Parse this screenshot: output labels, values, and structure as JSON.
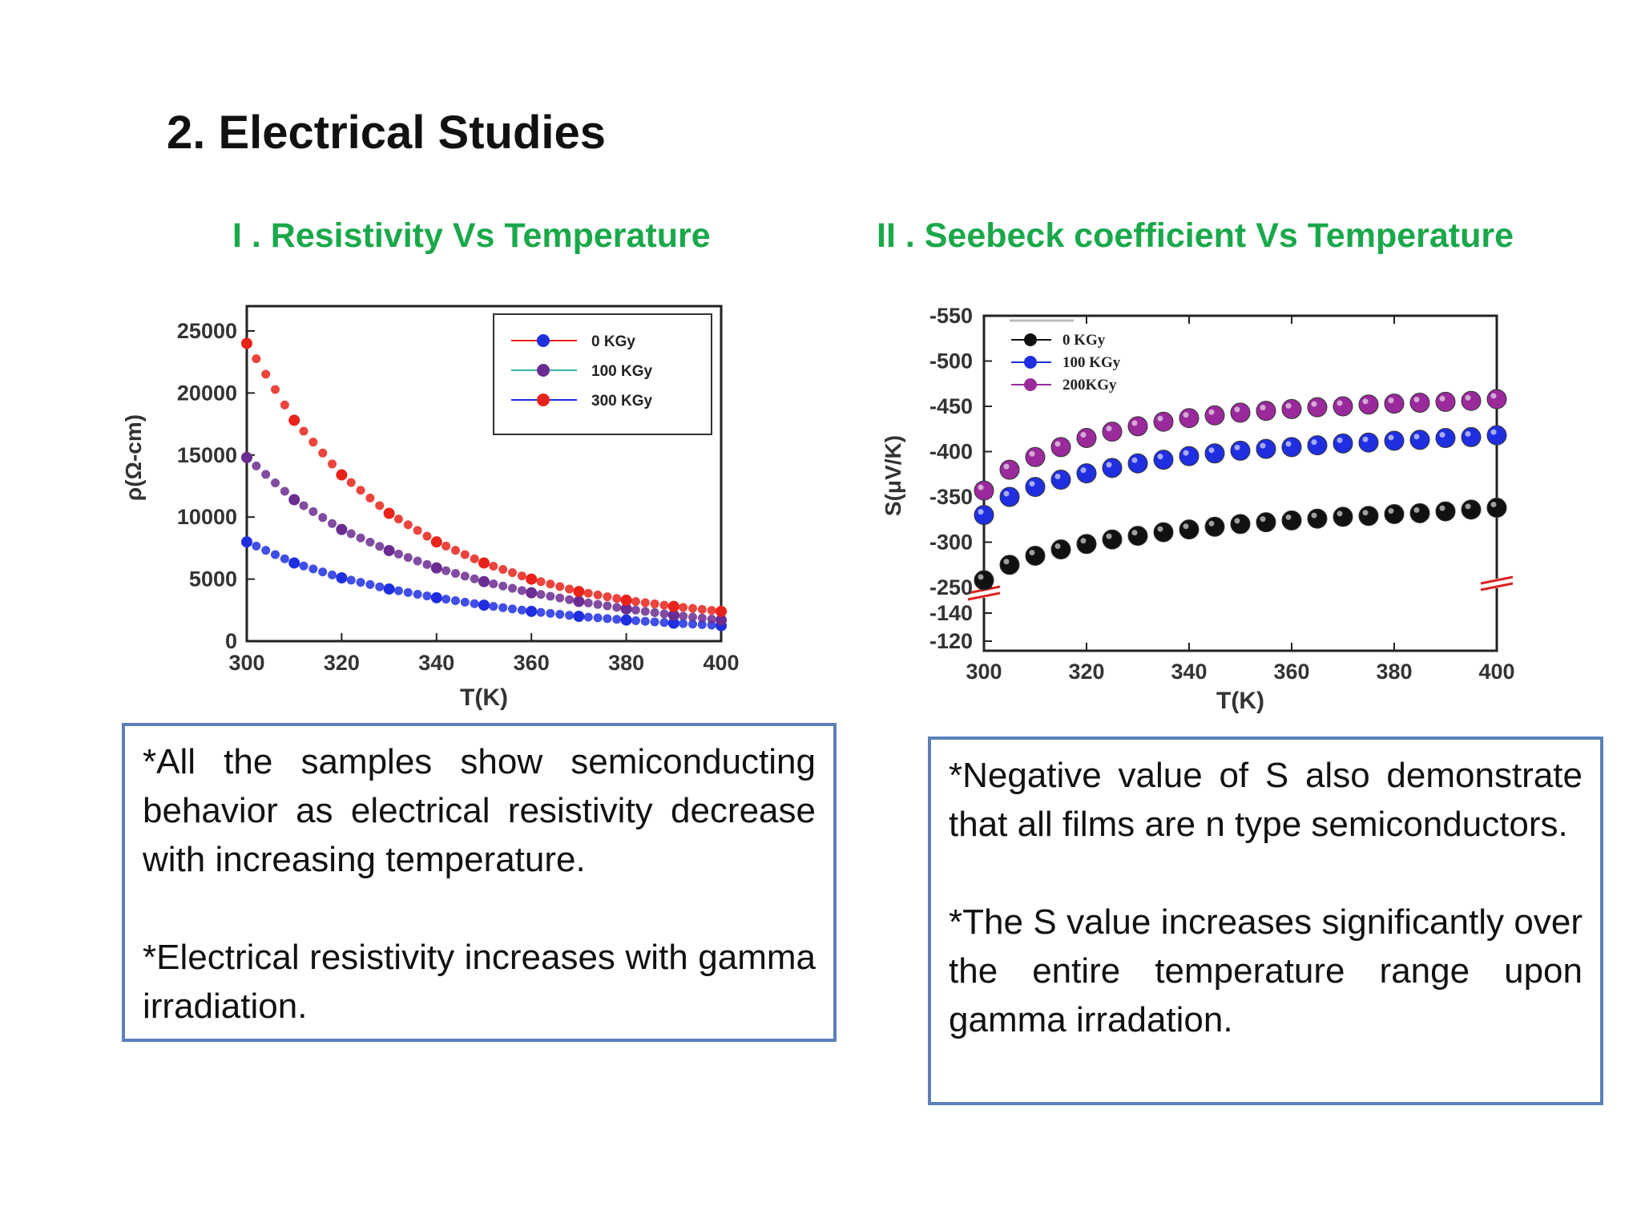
{
  "slide": {
    "title": "2. Electrical Studies",
    "subtitle_left": "I . Resistivity Vs Temperature",
    "subtitle_right": "II . Seebeck coefficient  Vs Temperature"
  },
  "notes": {
    "left": [
      "*All the samples show semiconducting behavior as electrical resistivity decrease with  increasing temperature.",
      "*Electrical resistivity  increases with gamma irradiation."
    ],
    "right": [
      "*Negative value of S also demonstrate that all films are n type semiconductors.",
      "*The S value increases significantly over the entire temperature range upon gamma irradation."
    ]
  },
  "colors": {
    "subtitle": "#1aa84a",
    "note_border": "#5b80b8",
    "red": "#e8231b",
    "blue": "#1f2fe0",
    "purple": "#6b2c91",
    "magenta": "#9a2a9c",
    "black": "#111111"
  },
  "chart_data": [
    {
      "type": "scatter",
      "title": "I . Resistivity Vs Temperature",
      "xlabel": "T(K)",
      "ylabel": "ρ(Ω-cm)",
      "xlim": [
        300,
        400
      ],
      "ylim": [
        0,
        27000
      ],
      "x_ticks": [
        "300",
        "320",
        "340",
        "360",
        "380",
        "400"
      ],
      "y_ticks": [
        "0",
        "5000",
        "10000",
        "15000",
        "20000",
        "25000"
      ],
      "legend_position": "top-right",
      "x": [
        300,
        310,
        320,
        330,
        340,
        350,
        360,
        370,
        380,
        390,
        400
      ],
      "series": [
        {
          "name": "0 KGy",
          "color": "#1f2fe0",
          "values": [
            8000,
            6300,
            5100,
            4200,
            3500,
            2900,
            2400,
            2000,
            1700,
            1450,
            1250
          ]
        },
        {
          "name": "100 KGy",
          "color": "#6b2c91",
          "values": [
            14800,
            11400,
            9000,
            7300,
            5900,
            4800,
            3900,
            3200,
            2600,
            2100,
            1700
          ]
        },
        {
          "name": "300 KGy",
          "color": "#e8231b",
          "values": [
            24000,
            17800,
            13400,
            10300,
            8000,
            6300,
            5000,
            4000,
            3300,
            2800,
            2400
          ]
        }
      ]
    },
    {
      "type": "scatter",
      "title": "II . Seebeck coefficient  Vs Temperature",
      "xlabel": "T(K)",
      "ylabel": "S(μV/K)",
      "xlim": [
        300,
        400
      ],
      "y_ticks_upper": [
        "-250",
        "-300",
        "-350",
        "-400",
        "-450",
        "-500",
        "-550"
      ],
      "y_ticks_lower": [
        "-140",
        "-120"
      ],
      "x_ticks": [
        "300",
        "320",
        "340",
        "360",
        "380",
        "400"
      ],
      "legend_position": "top-left",
      "axis_break": true,
      "x": [
        300,
        305,
        310,
        315,
        320,
        325,
        330,
        335,
        340,
        345,
        350,
        355,
        360,
        365,
        370,
        375,
        380,
        385,
        390,
        395,
        400
      ],
      "series": [
        {
          "name": "0 KGy",
          "color": "#111111",
          "values": [
            -258,
            -275,
            -285,
            -292,
            -298,
            -303,
            -307,
            -311,
            -314,
            -317,
            -320,
            -322,
            -324,
            -326,
            -328,
            -329,
            -331,
            -332,
            -334,
            -336,
            -338
          ]
        },
        {
          "name": "100 KGy",
          "color": "#1f2fe0",
          "values": [
            -330,
            -350,
            -361,
            -369,
            -376,
            -382,
            -387,
            -391,
            -395,
            -398,
            -401,
            -403,
            -405,
            -407,
            -409,
            -410,
            -412,
            -413,
            -415,
            -416,
            -418
          ]
        },
        {
          "name": "200KGy",
          "color": "#9a2a9c",
          "values": [
            -357,
            -380,
            -394,
            -405,
            -415,
            -422,
            -428,
            -433,
            -437,
            -440,
            -443,
            -445,
            -447,
            -449,
            -450,
            -452,
            -453,
            -454,
            -455,
            -456,
            -458
          ]
        }
      ]
    }
  ]
}
